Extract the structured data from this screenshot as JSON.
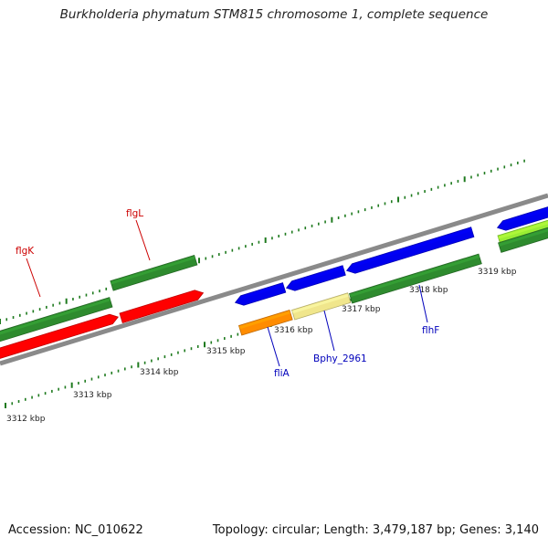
{
  "title": "Burkholderia phymatum STM815 chromosome 1, complete sequence",
  "footer": {
    "accession": "Accession: NC_010622",
    "summary": "Topology: circular; Length: 3,479,187 bp; Genes: 3,140"
  },
  "colors": {
    "backbone": "#8a8a8a",
    "tick": "#1e7a1e",
    "forward_label": "#cc0000",
    "reverse_label": "#0000bb"
  },
  "ruler_labels": [
    "3312 kbp",
    "3313 kbp",
    "3314 kbp",
    "3315 kbp",
    "3316 kbp",
    "3317 kbp",
    "3318 kbp",
    "3319 kbp"
  ],
  "genes": [
    {
      "id": "flgK",
      "label": "flgK",
      "strand": "+",
      "color": "#2e8b2e"
    },
    {
      "id": "flgL",
      "label": "flgL",
      "strand": "+",
      "color": "#2e8b2e"
    },
    {
      "id": "red1",
      "label": "",
      "strand": "+",
      "color": "#ff0000"
    },
    {
      "id": "red2",
      "label": "",
      "strand": "+",
      "color": "#ff0000"
    },
    {
      "id": "fliA",
      "label": "fliA",
      "strand": "-",
      "color": "#ff8c00"
    },
    {
      "id": "bphy",
      "label": "Bphy_2961",
      "strand": "-",
      "color": "#f0e68c"
    },
    {
      "id": "blue1",
      "label": "",
      "strand": "-",
      "color": "#0000ee"
    },
    {
      "id": "blue2",
      "label": "",
      "strand": "-",
      "color": "#0000ee"
    },
    {
      "id": "blue3",
      "label": "",
      "strand": "-",
      "color": "#0000ee"
    },
    {
      "id": "flhF",
      "label": "flhF",
      "strand": "-",
      "color": "#2e8b2e"
    },
    {
      "id": "lime",
      "label": "",
      "strand": "-",
      "color": "#99ee33"
    },
    {
      "id": "green_end",
      "label": "",
      "strand": "-",
      "color": "#2e8b2e"
    }
  ]
}
